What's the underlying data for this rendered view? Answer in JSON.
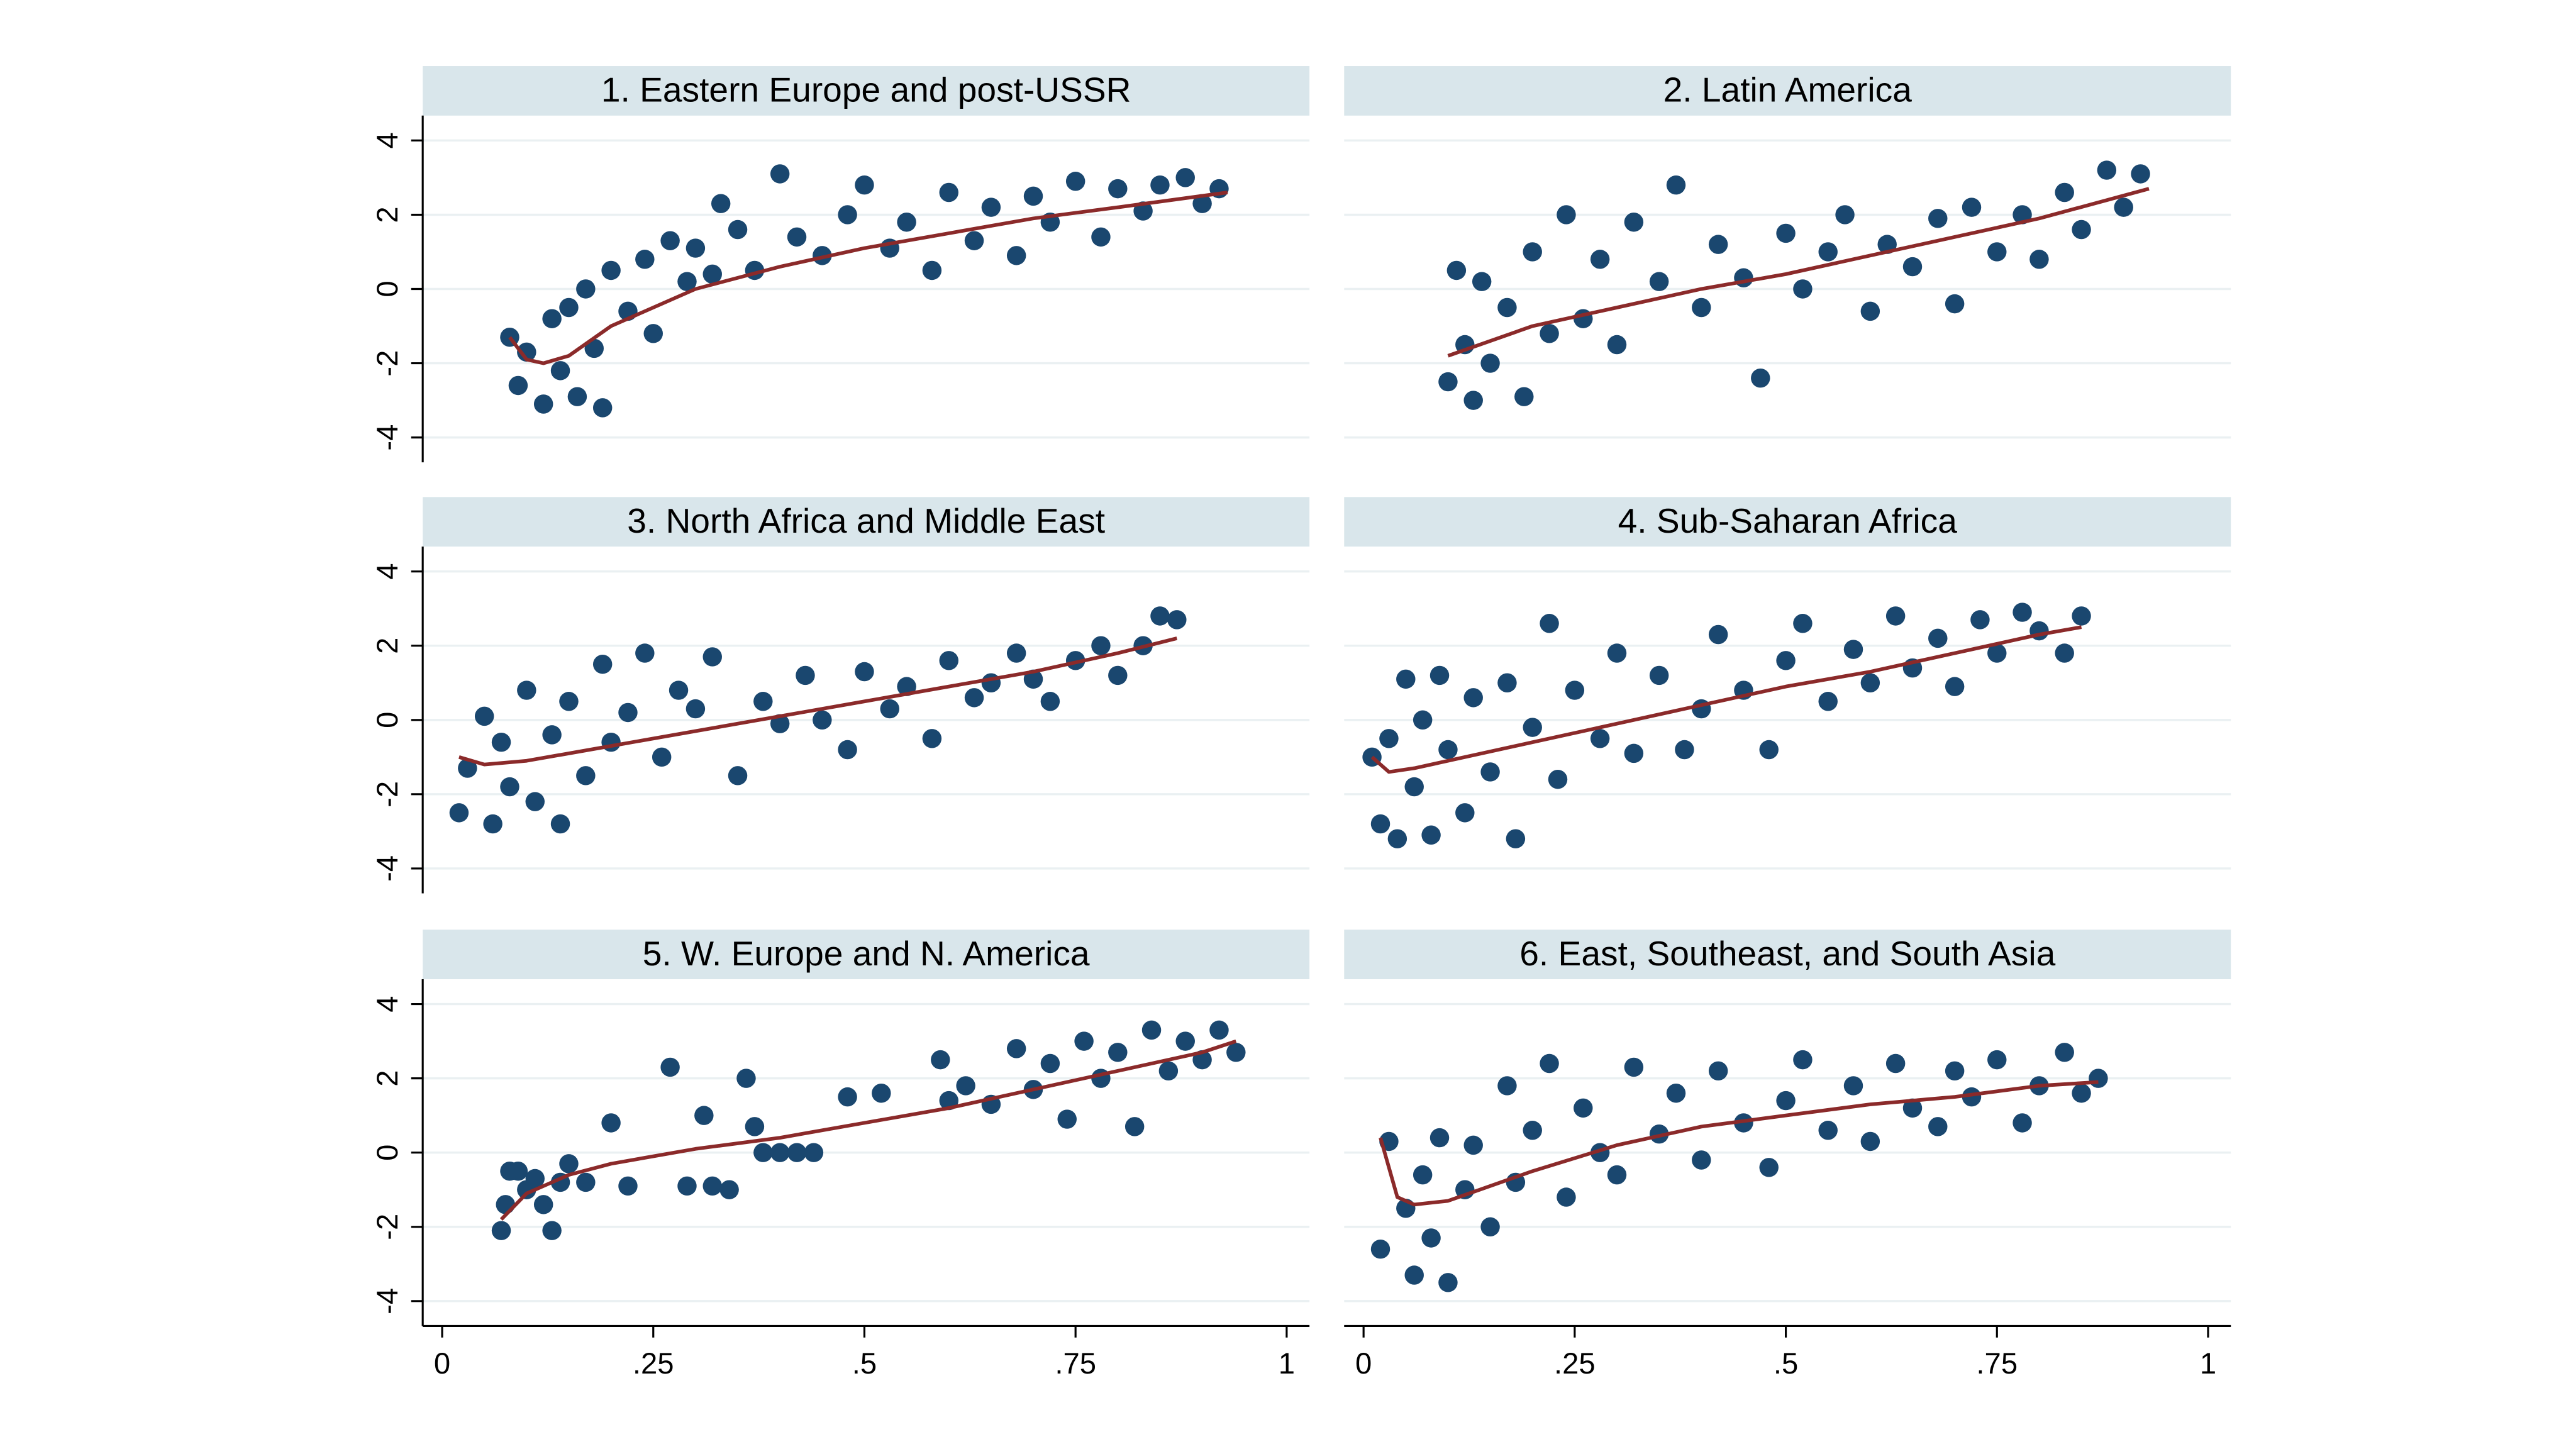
{
  "chart_data": [
    {
      "type": "scatter",
      "title": "1. Eastern Europe and post-USSR",
      "xlim": [
        -0.023,
        1.027
      ],
      "ylim": [
        -4.67,
        4.67
      ],
      "yticks": [
        -4,
        -2,
        0,
        2,
        4
      ],
      "grid": true,
      "series": [
        {
          "color": "#1a476f",
          "x": [
            0.08,
            0.09,
            0.1,
            0.12,
            0.13,
            0.14,
            0.15,
            0.16,
            0.17,
            0.18,
            0.19,
            0.2,
            0.22,
            0.24,
            0.25,
            0.27,
            0.29,
            0.3,
            0.32,
            0.33,
            0.35,
            0.37,
            0.4,
            0.42,
            0.45,
            0.48,
            0.5,
            0.53,
            0.55,
            0.58,
            0.6,
            0.63,
            0.65,
            0.68,
            0.7,
            0.72,
            0.75,
            0.78,
            0.8,
            0.83,
            0.85,
            0.88,
            0.9,
            0.92
          ],
          "values": [
            -1.3,
            -2.6,
            -1.7,
            -3.1,
            -0.8,
            -2.2,
            -0.5,
            -2.9,
            0,
            -1.6,
            -3.2,
            0.5,
            -0.6,
            0.8,
            -1.2,
            1.3,
            0.2,
            1.1,
            0.4,
            2.3,
            1.6,
            0.5,
            3.1,
            1.4,
            0.9,
            2.0,
            2.8,
            1.1,
            1.8,
            0.5,
            2.6,
            1.3,
            2.2,
            0.9,
            2.5,
            1.8,
            2.9,
            1.4,
            2.7,
            2.1,
            2.8,
            3.0,
            2.3,
            2.7
          ]
        },
        {
          "type": "line",
          "color": "#8b2a2a",
          "x": [
            0.08,
            0.1,
            0.12,
            0.15,
            0.2,
            0.3,
            0.4,
            0.5,
            0.6,
            0.7,
            0.8,
            0.93
          ],
          "values": [
            -1.3,
            -1.9,
            -2.0,
            -1.8,
            -1.0,
            0.0,
            0.6,
            1.1,
            1.5,
            1.9,
            2.2,
            2.6
          ]
        }
      ]
    },
    {
      "type": "scatter",
      "title": "2. Latin America",
      "xlim": [
        -0.023,
        1.027
      ],
      "ylim": [
        -4.67,
        4.67
      ],
      "yticks": [
        -4,
        -2,
        0,
        2,
        4
      ],
      "grid": true,
      "series": [
        {
          "color": "#1a476f",
          "x": [
            0.1,
            0.11,
            0.12,
            0.13,
            0.14,
            0.15,
            0.17,
            0.19,
            0.2,
            0.22,
            0.24,
            0.26,
            0.28,
            0.3,
            0.32,
            0.35,
            0.37,
            0.4,
            0.42,
            0.45,
            0.47,
            0.5,
            0.52,
            0.55,
            0.57,
            0.6,
            0.62,
            0.65,
            0.68,
            0.7,
            0.72,
            0.75,
            0.78,
            0.8,
            0.83,
            0.85,
            0.88,
            0.9,
            0.92
          ],
          "values": [
            -2.5,
            0.5,
            -1.5,
            -3.0,
            0.2,
            -2.0,
            -0.5,
            -2.9,
            1.0,
            -1.2,
            2.0,
            -0.8,
            0.8,
            -1.5,
            1.8,
            0.2,
            2.8,
            -0.5,
            1.2,
            0.3,
            -2.4,
            1.5,
            0.0,
            1.0,
            2.0,
            -0.6,
            1.2,
            0.6,
            1.9,
            -0.4,
            2.2,
            1.0,
            2.0,
            0.8,
            2.6,
            1.6,
            3.2,
            2.2,
            3.1
          ]
        },
        {
          "type": "line",
          "color": "#8b2a2a",
          "x": [
            0.1,
            0.2,
            0.3,
            0.4,
            0.5,
            0.6,
            0.7,
            0.8,
            0.93
          ],
          "values": [
            -1.8,
            -1.0,
            -0.5,
            0.0,
            0.4,
            0.9,
            1.4,
            1.9,
            2.7
          ]
        }
      ]
    },
    {
      "type": "scatter",
      "title": "3. North Africa and Middle East",
      "xlim": [
        -0.023,
        1.027
      ],
      "ylim": [
        -4.67,
        4.67
      ],
      "yticks": [
        -4,
        -2,
        0,
        2,
        4
      ],
      "grid": true,
      "series": [
        {
          "color": "#1a476f",
          "x": [
            0.02,
            0.03,
            0.05,
            0.06,
            0.07,
            0.08,
            0.1,
            0.11,
            0.13,
            0.14,
            0.15,
            0.17,
            0.19,
            0.2,
            0.22,
            0.24,
            0.26,
            0.28,
            0.3,
            0.32,
            0.35,
            0.38,
            0.4,
            0.43,
            0.45,
            0.48,
            0.5,
            0.53,
            0.55,
            0.58,
            0.6,
            0.63,
            0.65,
            0.68,
            0.7,
            0.72,
            0.75,
            0.78,
            0.8,
            0.83,
            0.85,
            0.87
          ],
          "values": [
            -2.5,
            -1.3,
            0.1,
            -2.8,
            -0.6,
            -1.8,
            0.8,
            -2.2,
            -0.4,
            -2.8,
            0.5,
            -1.5,
            1.5,
            -0.6,
            0.2,
            1.8,
            -1.0,
            0.8,
            0.3,
            1.7,
            -1.5,
            0.5,
            -0.1,
            1.2,
            0.0,
            -0.8,
            1.3,
            0.3,
            0.9,
            -0.5,
            1.6,
            0.6,
            1.0,
            1.8,
            1.1,
            0.5,
            1.6,
            2.0,
            1.2,
            2.0,
            2.8,
            2.7
          ]
        },
        {
          "type": "line",
          "color": "#8b2a2a",
          "x": [
            0.02,
            0.05,
            0.1,
            0.2,
            0.3,
            0.4,
            0.5,
            0.6,
            0.7,
            0.8,
            0.87
          ],
          "values": [
            -1.0,
            -1.2,
            -1.1,
            -0.7,
            -0.3,
            0.1,
            0.5,
            0.9,
            1.3,
            1.8,
            2.2
          ]
        }
      ]
    },
    {
      "type": "scatter",
      "title": "4. Sub-Saharan Africa",
      "xlim": [
        -0.023,
        1.027
      ],
      "ylim": [
        -4.67,
        4.67
      ],
      "yticks": [
        -4,
        -2,
        0,
        2,
        4
      ],
      "grid": true,
      "series": [
        {
          "color": "#1a476f",
          "x": [
            0.01,
            0.02,
            0.03,
            0.04,
            0.05,
            0.06,
            0.07,
            0.08,
            0.09,
            0.1,
            0.12,
            0.13,
            0.15,
            0.17,
            0.18,
            0.2,
            0.22,
            0.23,
            0.25,
            0.28,
            0.3,
            0.32,
            0.35,
            0.38,
            0.4,
            0.42,
            0.45,
            0.48,
            0.5,
            0.52,
            0.55,
            0.58,
            0.6,
            0.63,
            0.65,
            0.68,
            0.7,
            0.73,
            0.75,
            0.78,
            0.8,
            0.83,
            0.85
          ],
          "values": [
            -1.0,
            -2.8,
            -0.5,
            -3.2,
            1.1,
            -1.8,
            0.0,
            -3.1,
            1.2,
            -0.8,
            -2.5,
            0.6,
            -1.4,
            1.0,
            -3.2,
            -0.2,
            2.6,
            -1.6,
            0.8,
            -0.5,
            1.8,
            -0.9,
            1.2,
            -0.8,
            0.3,
            2.3,
            0.8,
            -0.8,
            1.6,
            2.6,
            0.5,
            1.9,
            1.0,
            2.8,
            1.4,
            2.2,
            0.9,
            2.7,
            1.8,
            2.9,
            2.4,
            1.8,
            2.8
          ]
        },
        {
          "type": "line",
          "color": "#8b2a2a",
          "x": [
            0.01,
            0.03,
            0.06,
            0.1,
            0.2,
            0.3,
            0.4,
            0.5,
            0.6,
            0.7,
            0.8,
            0.85
          ],
          "values": [
            -1.0,
            -1.4,
            -1.3,
            -1.1,
            -0.6,
            -0.1,
            0.4,
            0.9,
            1.3,
            1.8,
            2.3,
            2.5
          ]
        }
      ]
    },
    {
      "type": "scatter",
      "title": "5. W. Europe and N. America",
      "xlim": [
        -0.023,
        1.027
      ],
      "ylim": [
        -4.67,
        4.67
      ],
      "yticks": [
        -4,
        -2,
        0,
        2,
        4
      ],
      "grid": true,
      "xticks": [
        0,
        {
          "value": 0.25,
          "label": ".25"
        },
        {
          "value": 0.5,
          "label": ".5"
        },
        {
          "value": 0.75,
          "label": ".75"
        },
        1
      ],
      "series": [
        {
          "color": "#1a476f",
          "x": [
            0.07,
            0.075,
            0.08,
            0.09,
            0.1,
            0.11,
            0.12,
            0.13,
            0.14,
            0.15,
            0.17,
            0.2,
            0.22,
            0.27,
            0.29,
            0.31,
            0.32,
            0.34,
            0.36,
            0.37,
            0.38,
            0.4,
            0.42,
            0.44,
            0.48,
            0.52,
            0.59,
            0.6,
            0.62,
            0.65,
            0.68,
            0.7,
            0.72,
            0.74,
            0.76,
            0.78,
            0.8,
            0.82,
            0.84,
            0.86,
            0.88,
            0.9,
            0.92,
            0.94
          ],
          "values": [
            -2.1,
            -1.4,
            -0.5,
            -0.5,
            -1.0,
            -0.7,
            -1.4,
            -2.1,
            -0.8,
            -0.3,
            -0.8,
            0.8,
            -0.9,
            2.3,
            -0.9,
            1.0,
            -0.9,
            -1.0,
            2.0,
            0.7,
            0.0,
            0.0,
            0.0,
            0.0,
            1.5,
            1.6,
            2.5,
            1.4,
            1.8,
            1.3,
            2.8,
            1.7,
            2.4,
            0.9,
            3.0,
            2.0,
            2.7,
            0.7,
            3.3,
            2.2,
            3.0,
            2.5,
            3.3,
            2.7
          ]
        },
        {
          "type": "line",
          "color": "#8b2a2a",
          "x": [
            0.07,
            0.1,
            0.15,
            0.2,
            0.3,
            0.4,
            0.5,
            0.6,
            0.7,
            0.8,
            0.9,
            0.94
          ],
          "values": [
            -1.8,
            -1.1,
            -0.6,
            -0.3,
            0.1,
            0.4,
            0.8,
            1.2,
            1.7,
            2.2,
            2.7,
            3.0
          ]
        }
      ]
    },
    {
      "type": "scatter",
      "title": "6. East, Southeast, and South Asia",
      "xlim": [
        -0.023,
        1.027
      ],
      "ylim": [
        -4.67,
        4.67
      ],
      "yticks": [
        -4,
        -2,
        0,
        2,
        4
      ],
      "grid": true,
      "xticks": [
        0,
        {
          "value": 0.25,
          "label": ".25"
        },
        {
          "value": 0.5,
          "label": ".5"
        },
        {
          "value": 0.75,
          "label": ".75"
        },
        1
      ],
      "series": [
        {
          "color": "#1a476f",
          "x": [
            0.02,
            0.03,
            0.05,
            0.06,
            0.07,
            0.08,
            0.09,
            0.1,
            0.12,
            0.13,
            0.15,
            0.17,
            0.18,
            0.2,
            0.22,
            0.24,
            0.26,
            0.28,
            0.3,
            0.32,
            0.35,
            0.37,
            0.4,
            0.42,
            0.45,
            0.48,
            0.5,
            0.52,
            0.55,
            0.58,
            0.6,
            0.63,
            0.65,
            0.68,
            0.7,
            0.72,
            0.75,
            0.78,
            0.8,
            0.83,
            0.85,
            0.87
          ],
          "values": [
            -2.6,
            0.3,
            -1.5,
            -3.3,
            -0.6,
            -2.3,
            0.4,
            -3.5,
            -1.0,
            0.2,
            -2.0,
            1.8,
            -0.8,
            0.6,
            2.4,
            -1.2,
            1.2,
            0.0,
            -0.6,
            2.3,
            0.5,
            1.6,
            -0.2,
            2.2,
            0.8,
            -0.4,
            1.4,
            2.5,
            0.6,
            1.8,
            0.3,
            2.4,
            1.2,
            0.7,
            2.2,
            1.5,
            2.5,
            0.8,
            1.8,
            2.7,
            1.6,
            2.0
          ]
        },
        {
          "type": "line",
          "color": "#8b2a2a",
          "x": [
            0.02,
            0.04,
            0.06,
            0.1,
            0.2,
            0.3,
            0.4,
            0.5,
            0.6,
            0.7,
            0.8,
            0.87
          ],
          "values": [
            0.4,
            -1.2,
            -1.4,
            -1.3,
            -0.5,
            0.2,
            0.7,
            1.0,
            1.3,
            1.5,
            1.8,
            1.9
          ]
        }
      ]
    }
  ]
}
